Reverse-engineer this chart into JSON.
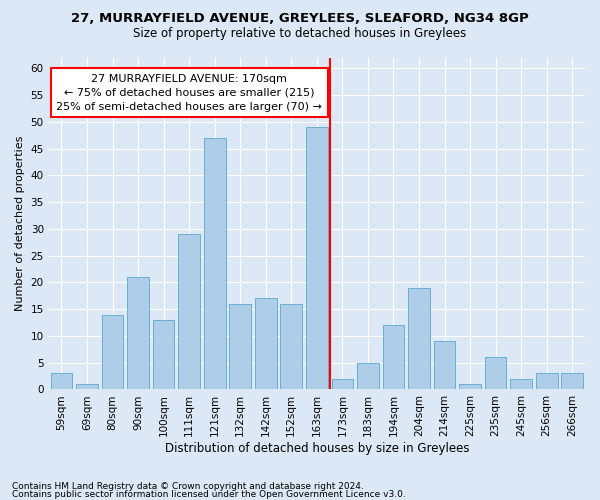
{
  "title1": "27, MURRAYFIELD AVENUE, GREYLEES, SLEAFORD, NG34 8GP",
  "title2": "Size of property relative to detached houses in Greylees",
  "xlabel": "Distribution of detached houses by size in Greylees",
  "ylabel": "Number of detached properties",
  "categories": [
    "59sqm",
    "69sqm",
    "80sqm",
    "90sqm",
    "100sqm",
    "111sqm",
    "121sqm",
    "132sqm",
    "142sqm",
    "152sqm",
    "163sqm",
    "173sqm",
    "183sqm",
    "194sqm",
    "204sqm",
    "214sqm",
    "225sqm",
    "235sqm",
    "245sqm",
    "256sqm",
    "266sqm"
  ],
  "values": [
    3,
    1,
    14,
    21,
    13,
    29,
    47,
    16,
    17,
    16,
    49,
    2,
    5,
    12,
    19,
    9,
    1,
    6,
    2,
    3,
    3
  ],
  "bar_color": "#aecde8",
  "bar_edge_color": "#6aaed6",
  "vline_index": 10,
  "property_line_label": "27 MURRAYFIELD AVENUE: 170sqm",
  "annotation_line1": "← 75% of detached houses are smaller (215)",
  "annotation_line2": "25% of semi-detached houses are larger (70) →",
  "annotation_box_color": "white",
  "annotation_box_edge_color": "red",
  "vline_color": "red",
  "ylim": [
    0,
    62
  ],
  "yticks": [
    0,
    5,
    10,
    15,
    20,
    25,
    30,
    35,
    40,
    45,
    50,
    55,
    60
  ],
  "bg_color": "#dce8f5",
  "plot_bg_color": "#dce8f5",
  "footer_line1": "Contains HM Land Registry data © Crown copyright and database right 2024.",
  "footer_line2": "Contains public sector information licensed under the Open Government Licence v3.0.",
  "title1_fontsize": 9.5,
  "title2_fontsize": 8.5,
  "xlabel_fontsize": 8.5,
  "ylabel_fontsize": 8,
  "tick_fontsize": 7.5,
  "annotation_fontsize": 8,
  "footer_fontsize": 6.5
}
